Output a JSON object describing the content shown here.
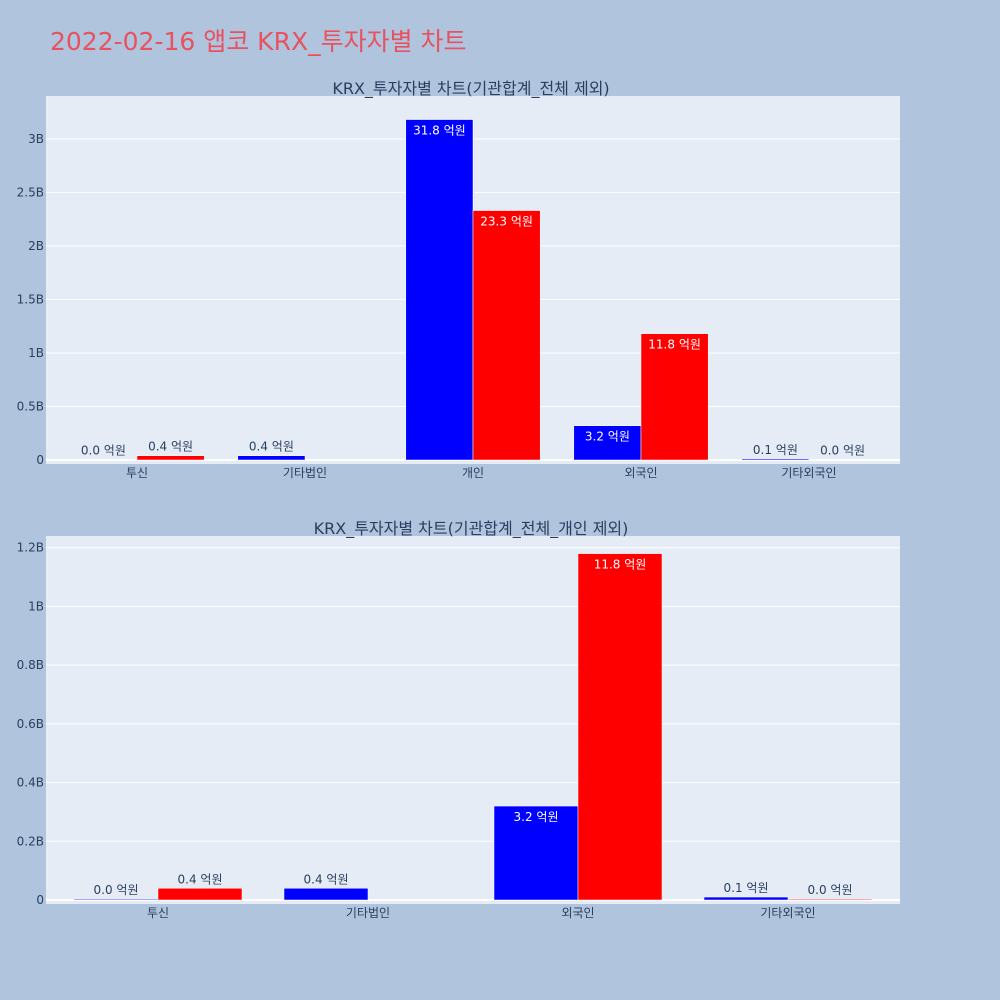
{
  "page": {
    "title": "2022-02-16 앱코 KRX_투자자별 차트"
  },
  "colors": {
    "buy": "#0000ff",
    "sell": "#ff0000",
    "plot_bg": "#e5ecf6",
    "page_bg": "#b0c4de",
    "title": "#e8525f",
    "text": "#2a3f5f"
  },
  "chart_data": [
    {
      "type": "bar",
      "title": "KRX_투자자별 차트(기관합계_전체 제외)",
      "categories": [
        "투신",
        "기타법인",
        "개인",
        "외국인",
        "기타외국인"
      ],
      "ylim": [
        0,
        3400000000
      ],
      "yticks": [
        0,
        500000000,
        1000000000,
        1500000000,
        2000000000,
        2500000000,
        3000000000
      ],
      "ytick_labels": [
        "0",
        "0.5B",
        "1B",
        "1.5B",
        "2B",
        "2.5B",
        "3B"
      ],
      "grid": true,
      "series": [
        {
          "values": [
            3000000,
            40000000,
            3180000000,
            320000000,
            10000000
          ],
          "labels": [
            "0.0 억원",
            "0.4 억원",
            "31.8 억원",
            "3.2 억원",
            "0.1 억원"
          ],
          "color": "#0000ff"
        },
        {
          "values": [
            40000000,
            0,
            2330000000,
            1180000000,
            3000000
          ],
          "labels": [
            "0.4 억원",
            "",
            "23.3 억원",
            "11.8 억원",
            "0.0 억원"
          ],
          "color": "#ff0000"
        }
      ]
    },
    {
      "type": "bar",
      "title": "KRX_투자자별 차트(기관합계_전체_개인 제외)",
      "categories": [
        "투신",
        "기타법인",
        "외국인",
        "기타외국인"
      ],
      "ylim": [
        0,
        1240000000
      ],
      "yticks": [
        0,
        200000000,
        400000000,
        600000000,
        800000000,
        1000000000,
        1200000000
      ],
      "ytick_labels": [
        "0",
        "0.2B",
        "0.4B",
        "0.6B",
        "0.8B",
        "1B",
        "1.2B"
      ],
      "grid": true,
      "series": [
        {
          "values": [
            3000000,
            40000000,
            320000000,
            10000000
          ],
          "labels": [
            "0.0 억원",
            "0.4 억원",
            "3.2 억원",
            "0.1 억원"
          ],
          "color": "#0000ff"
        },
        {
          "values": [
            40000000,
            0,
            1180000000,
            3000000
          ],
          "labels": [
            "0.4 억원",
            "",
            "11.8 억원",
            "0.0 억원"
          ],
          "color": "#ff0000"
        }
      ]
    }
  ]
}
